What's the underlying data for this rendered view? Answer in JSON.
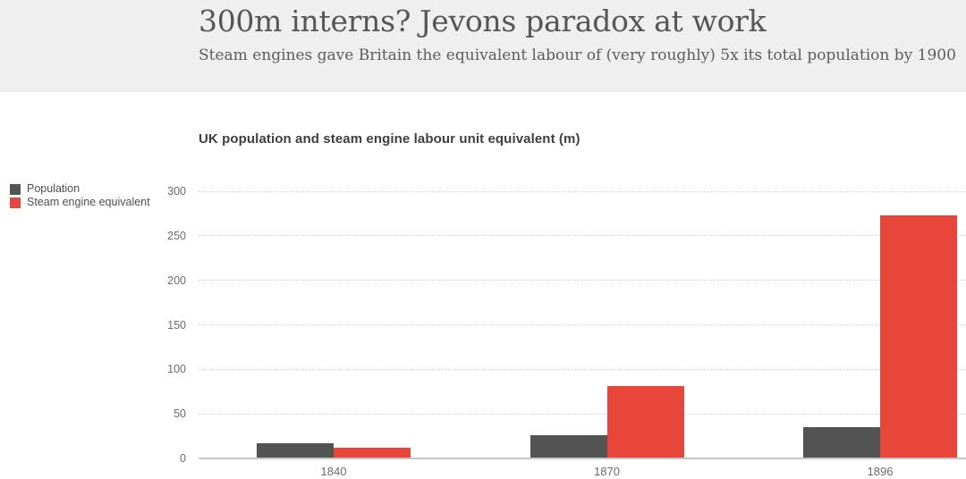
{
  "header": {
    "title": "300m interns? Jevons paradox at work",
    "subtitle": "Steam engines gave Britain the equivalent labour of (very roughly) 5x its total population by 1900"
  },
  "chart": {
    "title": "UK population and steam engine labour unit equivalent (m)",
    "legend": [
      {
        "label": "Population",
        "color": "#535353"
      },
      {
        "label": "Steam engine equivalent",
        "color": "#e8463a"
      }
    ]
  },
  "chart_data": {
    "type": "bar",
    "title": "UK population and steam engine labour unit equivalent (m)",
    "categories": [
      "1840",
      "1870",
      "1896"
    ],
    "series": [
      {
        "name": "Population",
        "color": "#535353",
        "values": [
          16,
          25,
          34
        ]
      },
      {
        "name": "Steam engine equivalent",
        "color": "#e8463a",
        "values": [
          11,
          80,
          272
        ]
      }
    ],
    "ylim": [
      0,
      300
    ],
    "yticks": [
      0,
      50,
      100,
      150,
      200,
      250,
      300
    ],
    "grid": "horizontal-dotted",
    "legend_position": "left"
  },
  "colors": {
    "header_bg": "#efefef",
    "title_text": "#565656",
    "subtitle_text": "#5c5c5c",
    "chart_title_text": "#3f3f3f",
    "tick_text": "#6b6b6b",
    "legend_text": "#4f4f4f",
    "grid_line": "#d2d2d2",
    "axis_line": "#c6c6c6"
  }
}
